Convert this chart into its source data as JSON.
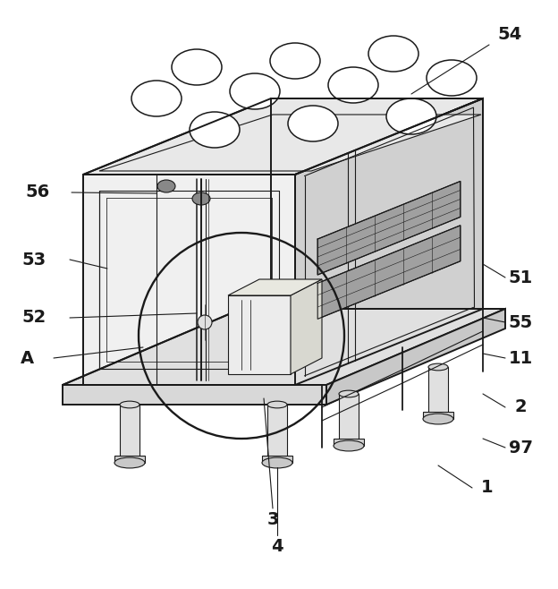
{
  "background_color": "#ffffff",
  "line_color": "#1a1a1a",
  "lw_main": 1.4,
  "lw_thin": 0.8,
  "lw_thick": 2.0,
  "label_fontsize": 14,
  "label_fontweight": "bold",
  "top_face_color": "#e8e8e8",
  "right_face_color": "#d0d0d0",
  "front_face_color": "#f0f0f0",
  "base_top_color": "#e0e0e0",
  "base_front_color": "#d8d8d8",
  "base_right_color": "#c8c8c8",
  "inner_color": "#f5f5f0",
  "grille_color": "#a0a0a0",
  "hole_color": "#ffffff",
  "mesh_color": "#888888"
}
